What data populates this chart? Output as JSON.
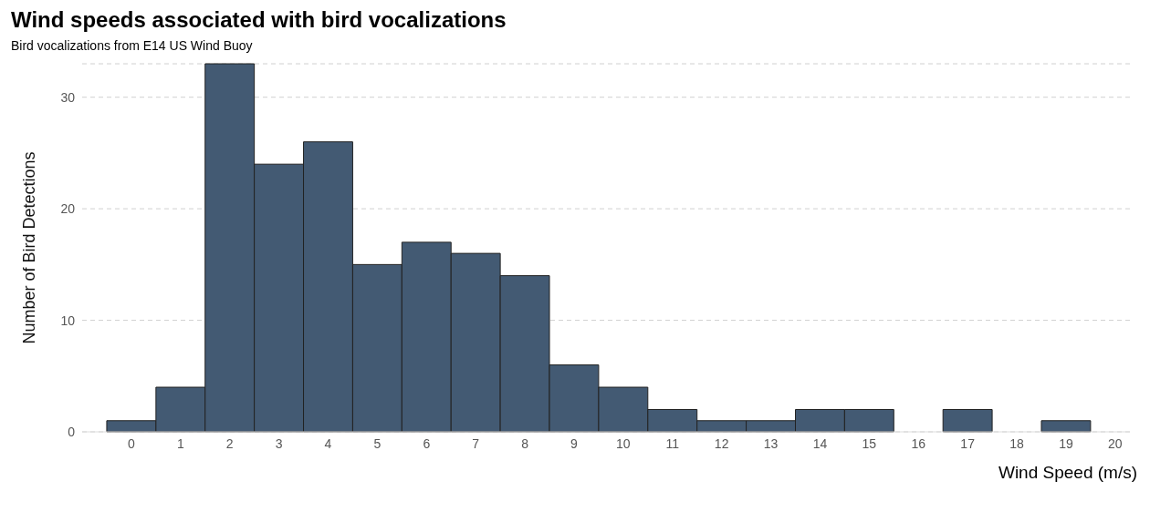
{
  "chart_data": {
    "type": "histogram",
    "title": "Wind speeds associated with bird vocalizations",
    "subtitle": "Bird vocalizations from E14 US Wind Buoy",
    "xlabel": "Wind Speed (m/s)",
    "ylabel": "Number of Bird Detections",
    "bins": [
      -0.5,
      0.5,
      1.5,
      2.5,
      3.5,
      4.5,
      5.5,
      6.5,
      7.5,
      8.5,
      9.5,
      10.5,
      11.5,
      12.5,
      13.5,
      14.5,
      15.5,
      16.5,
      17.5,
      18.5,
      19.5
    ],
    "values": [
      1,
      4,
      33,
      24,
      26,
      15,
      17,
      16,
      14,
      6,
      4,
      2,
      1,
      1,
      2,
      2,
      0,
      2,
      0,
      1
    ],
    "color": "#435a73",
    "xlim": [
      -1,
      20.3
    ],
    "xticks": [
      0,
      1,
      2,
      3,
      4,
      5,
      6,
      7,
      8,
      9,
      10,
      11,
      12,
      13,
      14,
      15,
      16,
      17,
      18,
      19,
      20
    ],
    "ylim": [
      0,
      33
    ],
    "yticks": [
      0,
      10,
      20,
      30
    ],
    "grid": "y"
  }
}
